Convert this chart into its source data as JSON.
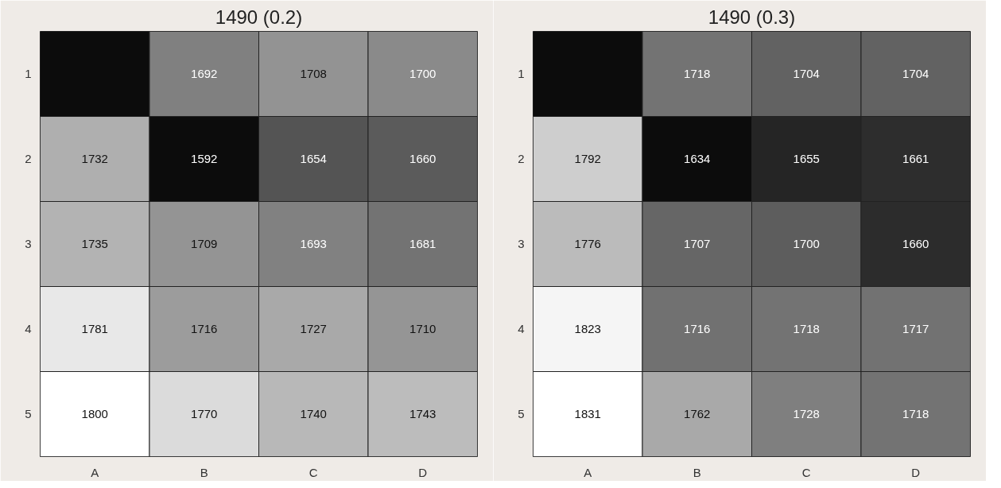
{
  "chart_data": [
    {
      "type": "heatmap",
      "title": "1490 (0.2)",
      "categories": [
        "A",
        "B",
        "C",
        "D"
      ],
      "y_categories": [
        "1",
        "2",
        "3",
        "4",
        "5"
      ],
      "cells": [
        [
          null,
          1692,
          1708,
          1700
        ],
        [
          1732,
          1592,
          1654,
          1660
        ],
        [
          1735,
          1709,
          1693,
          1681
        ],
        [
          1781,
          1716,
          1727,
          1710
        ],
        [
          1800,
          1770,
          1740,
          1743
        ]
      ],
      "data_labels": true,
      "grid": false
    },
    {
      "type": "heatmap",
      "title": "1490 (0.3)",
      "categories": [
        "A",
        "B",
        "C",
        "D"
      ],
      "y_categories": [
        "1",
        "2",
        "3",
        "4",
        "5"
      ],
      "cells": [
        [
          null,
          1718,
          1704,
          1704
        ],
        [
          1792,
          1634,
          1655,
          1661
        ],
        [
          1776,
          1707,
          1700,
          1660
        ],
        [
          1823,
          1716,
          1718,
          1717
        ],
        [
          1831,
          1762,
          1728,
          1718
        ]
      ],
      "data_labels": true,
      "grid": false
    }
  ]
}
